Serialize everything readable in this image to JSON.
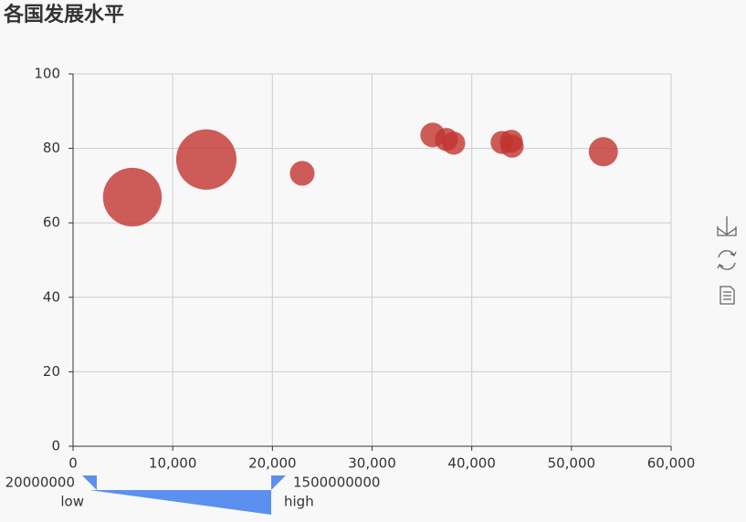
{
  "chart_data": {
    "type": "scatter",
    "title": "各国发展水平",
    "x": [
      5950,
      13370,
      22990,
      36080,
      37450,
      38190,
      43040,
      43960,
      44050,
      53200
    ],
    "series": [
      {
        "color": "#c23531",
        "values": [
          66.9,
          77.0,
          73.3,
          83.6,
          82.4,
          81.4,
          81.6,
          81.9,
          80.6,
          79.1
        ],
        "sizes": [
          1300000000,
          1370000000,
          230000000,
          230000000,
          200000000,
          200000000,
          200000000,
          200000000,
          200000000,
          320000000
        ]
      }
    ],
    "xlim": [
      0,
      60000
    ],
    "xticks": [
      0,
      {
        "value": 10000,
        "label": "10,000"
      },
      {
        "value": 20000,
        "label": "20,000"
      },
      {
        "value": 30000,
        "label": "30,000"
      },
      {
        "value": 40000,
        "label": "40,000"
      },
      {
        "value": 50000,
        "label": "50,000"
      },
      {
        "value": 60000,
        "label": "60,000"
      }
    ],
    "ylim": [
      0,
      100
    ],
    "yticks": [
      0,
      20,
      40,
      60,
      80,
      100
    ],
    "grid": true,
    "visual_map": {
      "min": 20000000,
      "max": 1500000000,
      "low_label": "low",
      "high_label": "high",
      "color": "#5b8ff0"
    }
  }
}
